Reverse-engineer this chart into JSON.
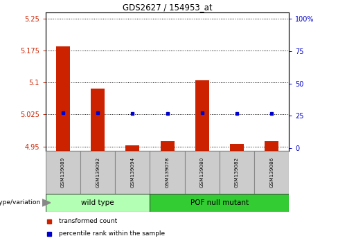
{
  "title": "GDS2627 / 154953_at",
  "samples": [
    "GSM139089",
    "GSM139092",
    "GSM139094",
    "GSM139078",
    "GSM139080",
    "GSM139082",
    "GSM139086"
  ],
  "transformed_count": [
    5.185,
    5.085,
    4.953,
    4.963,
    5.105,
    4.955,
    4.962
  ],
  "percentile_rank": [
    27.5,
    27.5,
    26.5,
    27.0,
    27.5,
    26.5,
    26.5
  ],
  "groups": [
    {
      "label": "wild type",
      "indices": [
        0,
        1,
        2
      ],
      "color": "#b3ffb3"
    },
    {
      "label": "POF null mutant",
      "indices": [
        3,
        4,
        5,
        6
      ],
      "color": "#33cc33"
    }
  ],
  "ylim_left": [
    4.94,
    5.265
  ],
  "ylim_right": [
    -2,
    105
  ],
  "yticks_left": [
    4.95,
    5.025,
    5.1,
    5.175,
    5.25
  ],
  "yticks_right": [
    0,
    25,
    50,
    75,
    100
  ],
  "ytick_labels_left": [
    "4.95",
    "5.025",
    "5.1",
    "5.175",
    "5.25"
  ],
  "ytick_labels_right": [
    "0",
    "25",
    "50",
    "75",
    "100%"
  ],
  "left_axis_color": "#cc2200",
  "right_axis_color": "#0000cc",
  "bar_color": "#cc2200",
  "marker_color": "#0000cc",
  "legend_items": [
    {
      "label": "transformed count",
      "color": "#cc2200"
    },
    {
      "label": "percentile rank within the sample",
      "color": "#0000cc"
    }
  ],
  "genotype_label": "genotype/variation",
  "sample_bg_color": "#cccccc",
  "bar_width": 0.4
}
